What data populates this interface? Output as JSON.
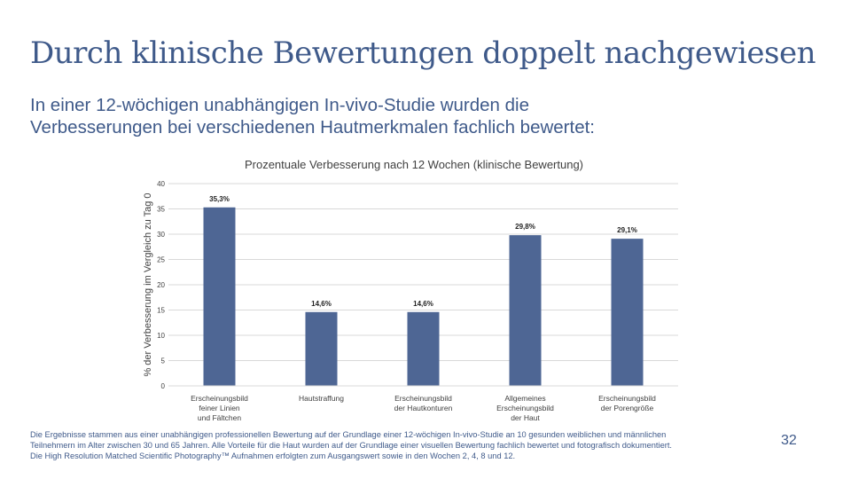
{
  "theme": {
    "heading_color": "#3f5a8a",
    "bar_color": "#4e6694",
    "grid_color": "#d9d9d9",
    "text_color": "#404040"
  },
  "slide": {
    "title": "Durch klinische Bewertungen doppelt nachgewiesen",
    "subtitle_lines": [
      "In einer 12-wöchigen unabhängigen In-vivo-Studie wurden die",
      "Verbesserungen bei verschiedenen Hautmerkmalen fachlich bewertet:"
    ],
    "footnote_lines": [
      "Die Ergebnisse stammen aus einer unabhängigen professionellen Bewertung auf der Grundlage einer 12-wöchigen In-vivo-Studie an 10 gesunden weiblichen und männlichen",
      "Teilnehmern im Alter zwischen 30 und 65 Jahren. Alle Vorteile für die Haut wurden auf der Grundlage einer visuellen Bewertung fachlich bewertet und fotografisch dokumentiert.",
      "Die High Resolution Matched Scientific Photography™ Aufnahmen erfolgten zum Ausgangswert sowie in den Wochen 2, 4, 8 und 12."
    ],
    "page_number": "32"
  },
  "chart_data": {
    "type": "bar",
    "title": "Prozentuale Verbesserung nach 12 Wochen (klinische Bewertung)",
    "xlabel": "",
    "ylabel": "% der Verbesserung im Vergleich zu Tag 0",
    "ylim": [
      0,
      40
    ],
    "yticks": [
      0,
      5,
      10,
      15,
      20,
      25,
      30,
      35,
      40
    ],
    "grid": true,
    "categories": [
      [
        "Erscheinungsbild",
        "feiner Linien",
        "und Fältchen"
      ],
      [
        "Hautstraffung"
      ],
      [
        "Erscheinungsbild",
        "der Hautkonturen"
      ],
      [
        "Allgemeines",
        "Erscheinungsbild",
        "der Haut"
      ],
      [
        "Erscheinungsbild",
        "der Porengröße"
      ]
    ],
    "values": [
      35.3,
      14.6,
      14.6,
      29.8,
      29.1
    ],
    "data_labels": [
      "35,3%",
      "14,6%",
      "14,6%",
      "29,8%",
      "29,1%"
    ]
  }
}
